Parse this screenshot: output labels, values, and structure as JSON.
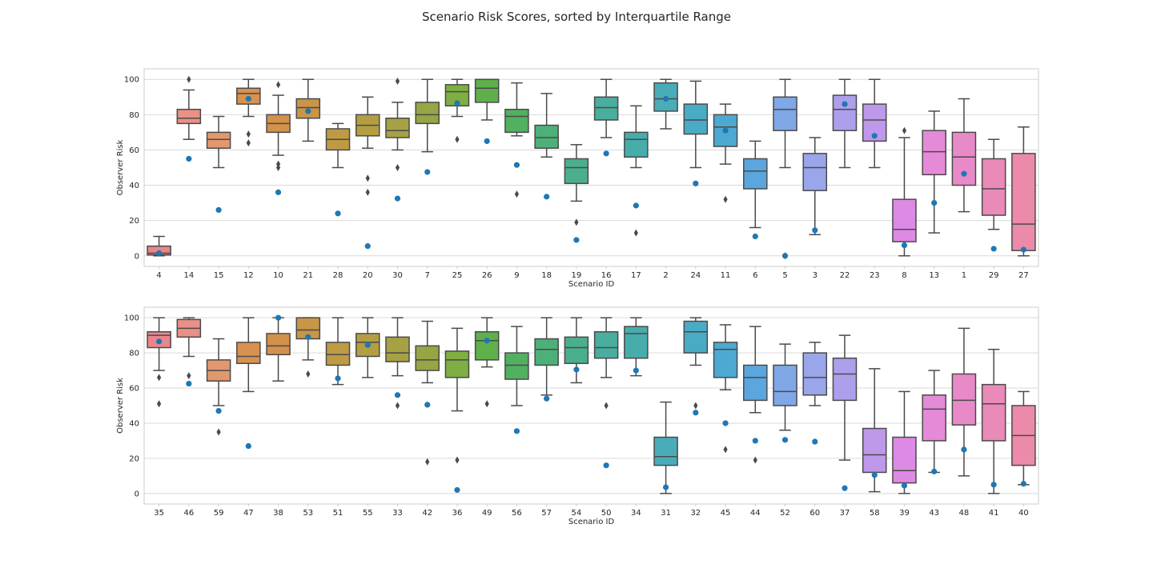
{
  "figure": {
    "title": "Scenario Risk Scores, sorted by Interquartile Range"
  },
  "colors": {
    "mean_dot": "#1f77b4",
    "box_edge": "#4a4a4a",
    "grid": "#d9d9d9",
    "frame": "#cccccc"
  },
  "chart_data": [
    {
      "type": "box",
      "xlabel": "Scenario ID",
      "ylabel": "Observer Risk",
      "ylim": [
        -6,
        106
      ],
      "yticks": [
        0,
        20,
        40,
        60,
        80,
        100
      ],
      "grid": "horizontal",
      "boxes": [
        {
          "id": "4",
          "color": "#e8868d",
          "q1": 0.5,
          "median": 1.5,
          "q3": 5.5,
          "whisker_low": 0,
          "whisker_high": 11,
          "outliers": [],
          "mean": 1.5
        },
        {
          "id": "14",
          "color": "#e99088",
          "q1": 75,
          "median": 78,
          "q3": 83,
          "whisker_low": 66,
          "whisker_high": 94,
          "outliers": [
            100
          ],
          "mean": 55
        },
        {
          "id": "15",
          "color": "#e2986e",
          "q1": 61,
          "median": 66,
          "q3": 70,
          "whisker_low": 50,
          "whisker_high": 79,
          "outliers": [],
          "mean": 26
        },
        {
          "id": "12",
          "color": "#d9914f",
          "q1": 86,
          "median": 92,
          "q3": 95,
          "whisker_low": 79,
          "whisker_high": 100,
          "outliers": [
            69,
            64
          ],
          "mean": 89
        },
        {
          "id": "10",
          "color": "#d3914b",
          "q1": 70,
          "median": 75,
          "q3": 80,
          "whisker_low": 57,
          "whisker_high": 91,
          "outliers": [
            97,
            52,
            50
          ],
          "mean": 36
        },
        {
          "id": "21",
          "color": "#c99546",
          "q1": 78,
          "median": 84,
          "q3": 89,
          "whisker_low": 65,
          "whisker_high": 100,
          "outliers": [],
          "mean": 82
        },
        {
          "id": "28",
          "color": "#bf9a45",
          "q1": 60,
          "median": 66,
          "q3": 72,
          "whisker_low": 50,
          "whisker_high": 75,
          "outliers": [],
          "mean": 24
        },
        {
          "id": "20",
          "color": "#b39e43",
          "q1": 68,
          "median": 74,
          "q3": 80,
          "whisker_low": 61,
          "whisker_high": 90,
          "outliers": [
            44,
            36
          ],
          "mean": 5.5
        },
        {
          "id": "30",
          "color": "#a6a143",
          "q1": 67,
          "median": 71,
          "q3": 78,
          "whisker_low": 60,
          "whisker_high": 87,
          "outliers": [
            99,
            50
          ],
          "mean": 32.5
        },
        {
          "id": "7",
          "color": "#97a545",
          "q1": 75,
          "median": 80,
          "q3": 87,
          "whisker_low": 59,
          "whisker_high": 100,
          "outliers": [],
          "mean": 47.5
        },
        {
          "id": "25",
          "color": "#7faf42",
          "q1": 85,
          "median": 93,
          "q3": 97,
          "whisker_low": 79,
          "whisker_high": 100,
          "outliers": [
            66
          ],
          "mean": 86.5
        },
        {
          "id": "26",
          "color": "#5fb04b",
          "q1": 87,
          "median": 95,
          "q3": 100,
          "whisker_low": 77,
          "whisker_high": 100,
          "outliers": [],
          "mean": 65
        },
        {
          "id": "9",
          "color": "#52b061",
          "q1": 70,
          "median": 79,
          "q3": 83,
          "whisker_low": 68,
          "whisker_high": 98,
          "outliers": [
            35
          ],
          "mean": 51.5
        },
        {
          "id": "18",
          "color": "#4db078",
          "q1": 61,
          "median": 67,
          "q3": 74,
          "whisker_low": 56,
          "whisker_high": 92,
          "outliers": [],
          "mean": 33.5
        },
        {
          "id": "19",
          "color": "#4baf8c",
          "q1": 41,
          "median": 50,
          "q3": 55,
          "whisker_low": 31,
          "whisker_high": 63,
          "outliers": [
            19
          ],
          "mean": 9
        },
        {
          "id": "16",
          "color": "#49ae9d",
          "q1": 77,
          "median": 84,
          "q3": 90,
          "whisker_low": 67,
          "whisker_high": 100,
          "outliers": [],
          "mean": 58
        },
        {
          "id": "17",
          "color": "#47adab",
          "q1": 56,
          "median": 66,
          "q3": 70,
          "whisker_low": 50,
          "whisker_high": 85,
          "outliers": [
            13
          ],
          "mean": 28.5
        },
        {
          "id": "2",
          "color": "#49adb9",
          "q1": 82,
          "median": 89,
          "q3": 98,
          "whisker_low": 72,
          "whisker_high": 100,
          "outliers": [],
          "mean": 89
        },
        {
          "id": "24",
          "color": "#4aabc5",
          "q1": 69,
          "median": 77,
          "q3": 86,
          "whisker_low": 50,
          "whisker_high": 99,
          "outliers": [],
          "mean": 41
        },
        {
          "id": "11",
          "color": "#4ea9d2",
          "q1": 62,
          "median": 73,
          "q3": 80,
          "whisker_low": 52,
          "whisker_high": 86,
          "outliers": [
            32
          ],
          "mean": 71
        },
        {
          "id": "6",
          "color": "#5ba6df",
          "q1": 38,
          "median": 48,
          "q3": 55,
          "whisker_low": 16,
          "whisker_high": 65,
          "outliers": [],
          "mean": 11
        },
        {
          "id": "5",
          "color": "#80a7e6",
          "q1": 71,
          "median": 83,
          "q3": 90,
          "whisker_low": 50,
          "whisker_high": 100,
          "outliers": [
            0
          ],
          "mean": 0
        },
        {
          "id": "3",
          "color": "#9aa6ea",
          "q1": 37,
          "median": 50,
          "q3": 58,
          "whisker_low": 12,
          "whisker_high": 67,
          "outliers": [],
          "mean": 14.5
        },
        {
          "id": "22",
          "color": "#ad9fec",
          "q1": 71,
          "median": 83,
          "q3": 91,
          "whisker_low": 50,
          "whisker_high": 100,
          "outliers": [],
          "mean": 86
        },
        {
          "id": "23",
          "color": "#be98ea",
          "q1": 65,
          "median": 77,
          "q3": 86,
          "whisker_low": 50,
          "whisker_high": 100,
          "outliers": [],
          "mean": 68
        },
        {
          "id": "8",
          "color": "#dd8ae5",
          "q1": 8,
          "median": 15,
          "q3": 32,
          "whisker_low": 0,
          "whisker_high": 67,
          "outliers": [
            71
          ],
          "mean": 6
        },
        {
          "id": "13",
          "color": "#e48ad7",
          "q1": 46,
          "median": 59,
          "q3": 71,
          "whisker_low": 13,
          "whisker_high": 82,
          "outliers": [],
          "mean": 30
        },
        {
          "id": "1",
          "color": "#e88ac8",
          "q1": 40,
          "median": 56,
          "q3": 70,
          "whisker_low": 25,
          "whisker_high": 89,
          "outliers": [],
          "mean": 46.5
        },
        {
          "id": "29",
          "color": "#ea8ab9",
          "q1": 23,
          "median": 38,
          "q3": 55,
          "whisker_low": 15,
          "whisker_high": 66,
          "outliers": [],
          "mean": 4
        },
        {
          "id": "27",
          "color": "#ec8aa9",
          "q1": 3,
          "median": 18,
          "q3": 58,
          "whisker_low": 0,
          "whisker_high": 73,
          "outliers": [],
          "mean": 3.5
        }
      ]
    },
    {
      "type": "box",
      "xlabel": "Scenario ID",
      "ylabel": "Observer Risk",
      "ylim": [
        -6,
        106
      ],
      "yticks": [
        0,
        20,
        40,
        60,
        80,
        100
      ],
      "grid": "horizontal",
      "boxes": [
        {
          "id": "35",
          "color": "#e8868d",
          "q1": 83,
          "median": 90,
          "q3": 92,
          "whisker_low": 70,
          "whisker_high": 100,
          "outliers": [
            66,
            51
          ],
          "mean": 86.5
        },
        {
          "id": "46",
          "color": "#e99088",
          "q1": 89,
          "median": 94,
          "q3": 99,
          "whisker_low": 78,
          "whisker_high": 100,
          "outliers": [
            67
          ],
          "mean": 62.5
        },
        {
          "id": "59",
          "color": "#e2986e",
          "q1": 64,
          "median": 70,
          "q3": 76,
          "whisker_low": 50,
          "whisker_high": 88,
          "outliers": [
            35
          ],
          "mean": 47
        },
        {
          "id": "47",
          "color": "#d9914f",
          "q1": 74,
          "median": 78,
          "q3": 86,
          "whisker_low": 58,
          "whisker_high": 100,
          "outliers": [],
          "mean": 27
        },
        {
          "id": "38",
          "color": "#d3914b",
          "q1": 79,
          "median": 84,
          "q3": 91,
          "whisker_low": 64,
          "whisker_high": 100,
          "outliers": [],
          "mean": 100
        },
        {
          "id": "53",
          "color": "#c99546",
          "q1": 88,
          "median": 93,
          "q3": 100,
          "whisker_low": 76,
          "whisker_high": 100,
          "outliers": [
            68
          ],
          "mean": 89
        },
        {
          "id": "51",
          "color": "#bf9a45",
          "q1": 73,
          "median": 79,
          "q3": 86,
          "whisker_low": 62,
          "whisker_high": 100,
          "outliers": [],
          "mean": 65.5
        },
        {
          "id": "55",
          "color": "#b39e43",
          "q1": 78,
          "median": 86,
          "q3": 91,
          "whisker_low": 66,
          "whisker_high": 100,
          "outliers": [],
          "mean": 84.5
        },
        {
          "id": "33",
          "color": "#a6a143",
          "q1": 75,
          "median": 80,
          "q3": 89,
          "whisker_low": 67,
          "whisker_high": 100,
          "outliers": [
            50
          ],
          "mean": 56
        },
        {
          "id": "42",
          "color": "#97a545",
          "q1": 70,
          "median": 76,
          "q3": 84,
          "whisker_low": 63,
          "whisker_high": 98,
          "outliers": [
            18
          ],
          "mean": 50.5
        },
        {
          "id": "36",
          "color": "#7faf42",
          "q1": 66,
          "median": 76,
          "q3": 81,
          "whisker_low": 47,
          "whisker_high": 94,
          "outliers": [
            19
          ],
          "mean": 2
        },
        {
          "id": "49",
          "color": "#5fb04b",
          "q1": 76,
          "median": 87,
          "q3": 92,
          "whisker_low": 72,
          "whisker_high": 100,
          "outliers": [
            51
          ],
          "mean": 87
        },
        {
          "id": "56",
          "color": "#52b061",
          "q1": 65,
          "median": 73,
          "q3": 80,
          "whisker_low": 50,
          "whisker_high": 95,
          "outliers": [],
          "mean": 35.5
        },
        {
          "id": "57",
          "color": "#4db078",
          "q1": 73,
          "median": 82,
          "q3": 88,
          "whisker_low": 56,
          "whisker_high": 100,
          "outliers": [],
          "mean": 54
        },
        {
          "id": "54",
          "color": "#4baf8c",
          "q1": 74,
          "median": 83,
          "q3": 89,
          "whisker_low": 63,
          "whisker_high": 100,
          "outliers": [],
          "mean": 70.5
        },
        {
          "id": "50",
          "color": "#49ae9d",
          "q1": 77,
          "median": 83,
          "q3": 92,
          "whisker_low": 66,
          "whisker_high": 100,
          "outliers": [
            50
          ],
          "mean": 16
        },
        {
          "id": "34",
          "color": "#47adab",
          "q1": 77,
          "median": 91,
          "q3": 95,
          "whisker_low": 67,
          "whisker_high": 100,
          "outliers": [],
          "mean": 70
        },
        {
          "id": "31",
          "color": "#49adb9",
          "q1": 16,
          "median": 21,
          "q3": 32,
          "whisker_low": 0,
          "whisker_high": 52,
          "outliers": [],
          "mean": 3.5
        },
        {
          "id": "32",
          "color": "#4aabc5",
          "q1": 80,
          "median": 92,
          "q3": 98,
          "whisker_low": 73,
          "whisker_high": 100,
          "outliers": [
            50
          ],
          "mean": 46
        },
        {
          "id": "45",
          "color": "#4ea9d2",
          "q1": 66,
          "median": 82,
          "q3": 86,
          "whisker_low": 59,
          "whisker_high": 96,
          "outliers": [
            25
          ],
          "mean": 40
        },
        {
          "id": "44",
          "color": "#5ba6df",
          "q1": 53,
          "median": 66,
          "q3": 73,
          "whisker_low": 46,
          "whisker_high": 95,
          "outliers": [
            19
          ],
          "mean": 30
        },
        {
          "id": "52",
          "color": "#80a7e6",
          "q1": 50,
          "median": 58,
          "q3": 73,
          "whisker_low": 36,
          "whisker_high": 85,
          "outliers": [],
          "mean": 30.5
        },
        {
          "id": "60",
          "color": "#9aa6ea",
          "q1": 56,
          "median": 66,
          "q3": 80,
          "whisker_low": 50,
          "whisker_high": 86,
          "outliers": [],
          "mean": 29.5
        },
        {
          "id": "37",
          "color": "#ad9fec",
          "q1": 53,
          "median": 68,
          "q3": 77,
          "whisker_low": 19,
          "whisker_high": 90,
          "outliers": [],
          "mean": 3
        },
        {
          "id": "58",
          "color": "#be98ea",
          "q1": 12,
          "median": 22,
          "q3": 37,
          "whisker_low": 1,
          "whisker_high": 71,
          "outliers": [],
          "mean": 10.5
        },
        {
          "id": "39",
          "color": "#dd8ae5",
          "q1": 6,
          "median": 13,
          "q3": 32,
          "whisker_low": 0,
          "whisker_high": 58,
          "outliers": [],
          "mean": 4.5
        },
        {
          "id": "43",
          "color": "#e48ad7",
          "q1": 30,
          "median": 48,
          "q3": 56,
          "whisker_low": 12,
          "whisker_high": 70,
          "outliers": [],
          "mean": 12.5
        },
        {
          "id": "48",
          "color": "#e88ac8",
          "q1": 39,
          "median": 53,
          "q3": 68,
          "whisker_low": 10,
          "whisker_high": 94,
          "outliers": [],
          "mean": 25
        },
        {
          "id": "41",
          "color": "#ea8ab9",
          "q1": 30,
          "median": 51,
          "q3": 62,
          "whisker_low": 0,
          "whisker_high": 82,
          "outliers": [],
          "mean": 5
        },
        {
          "id": "40",
          "color": "#ec8aa9",
          "q1": 16,
          "median": 33,
          "q3": 50,
          "whisker_low": 5,
          "whisker_high": 58,
          "outliers": [],
          "mean": 5.5
        }
      ]
    }
  ]
}
